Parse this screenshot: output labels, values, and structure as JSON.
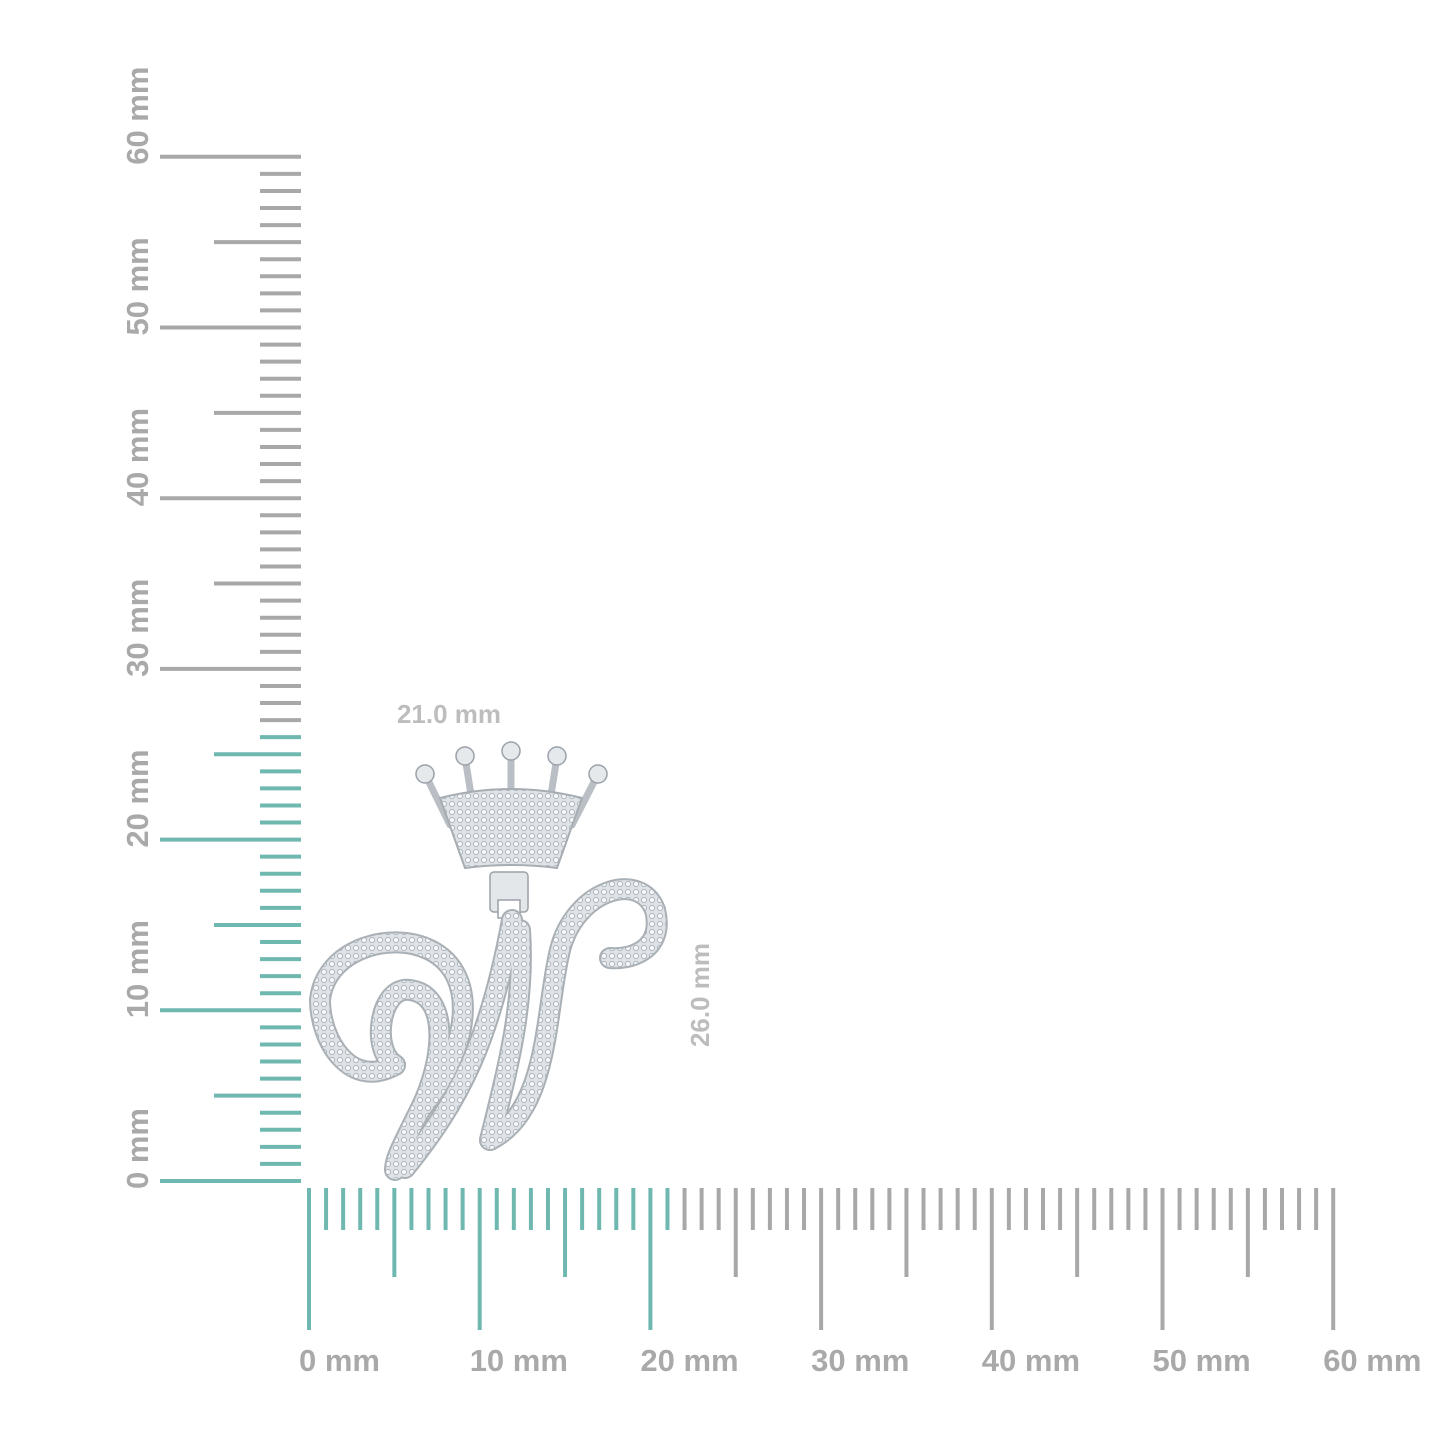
{
  "rulers": {
    "unit": "mm",
    "horizontal": {
      "min": 0,
      "max": 60,
      "labels": [
        "0 mm",
        "10 mm",
        "20 mm",
        "30 mm",
        "40 mm",
        "50 mm",
        "60 mm"
      ],
      "highlight_to_mm": 21
    },
    "vertical": {
      "min": 0,
      "max": 60,
      "labels": [
        "0 mm",
        "10 mm",
        "20 mm",
        "30 mm",
        "40 mm",
        "50 mm",
        "60 mm"
      ],
      "highlight_to_mm": 26
    },
    "colors": {
      "highlight": "#6fb8b0",
      "normal": "#a8a8a8"
    }
  },
  "dimensions": {
    "width_label": "21.0 mm",
    "height_label": "26.0 mm"
  },
  "product": {
    "name": "crown-initial-w-pendant",
    "metal_color": "#d9dde0",
    "stone_color": "#eef2f5"
  }
}
